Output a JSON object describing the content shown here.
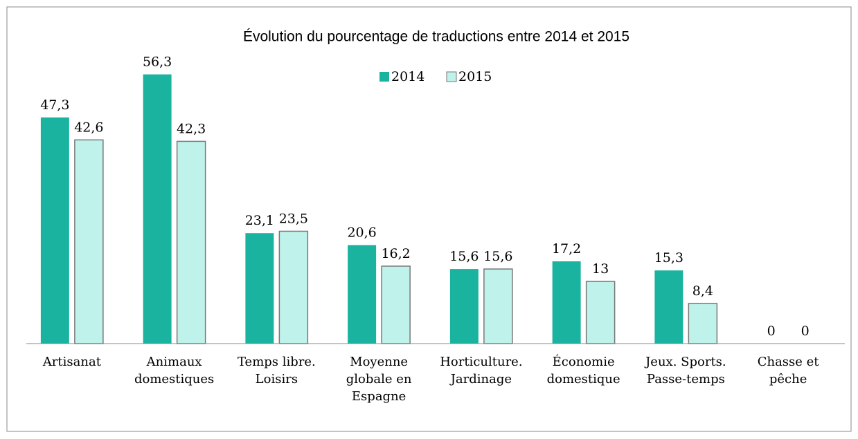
{
  "chart_data": {
    "type": "bar",
    "title": "Évolution du pourcentage de traductions entre 2014 et 2015",
    "categories": [
      "Artisanat",
      "Animaux domestiques",
      "Temps libre. Loisirs",
      "Moyenne globale en Espagne",
      "Horticulture. Jardinage",
      "Économie domestique",
      "Jeux. Sports. Passe-temps",
      "Chasse et pêche"
    ],
    "series": [
      {
        "name": "2014",
        "color": "#1ab3a0",
        "values": [
          47.3,
          56.3,
          23.1,
          20.6,
          15.6,
          17.2,
          15.3,
          0
        ],
        "value_labels": [
          "47,3",
          "56,3",
          "23,1",
          "20,6",
          "15,6",
          "17,2",
          "15,3",
          "0"
        ]
      },
      {
        "name": "2015",
        "color": "#bff2ea",
        "values": [
          42.6,
          42.3,
          23.5,
          16.2,
          15.6,
          13,
          8.4,
          0
        ],
        "value_labels": [
          "42,6",
          "42,3",
          "23,5",
          "16,2",
          "15,6",
          "13",
          "8,4",
          "0"
        ]
      }
    ],
    "ylim": [
      0,
      60
    ],
    "legend": "top"
  }
}
